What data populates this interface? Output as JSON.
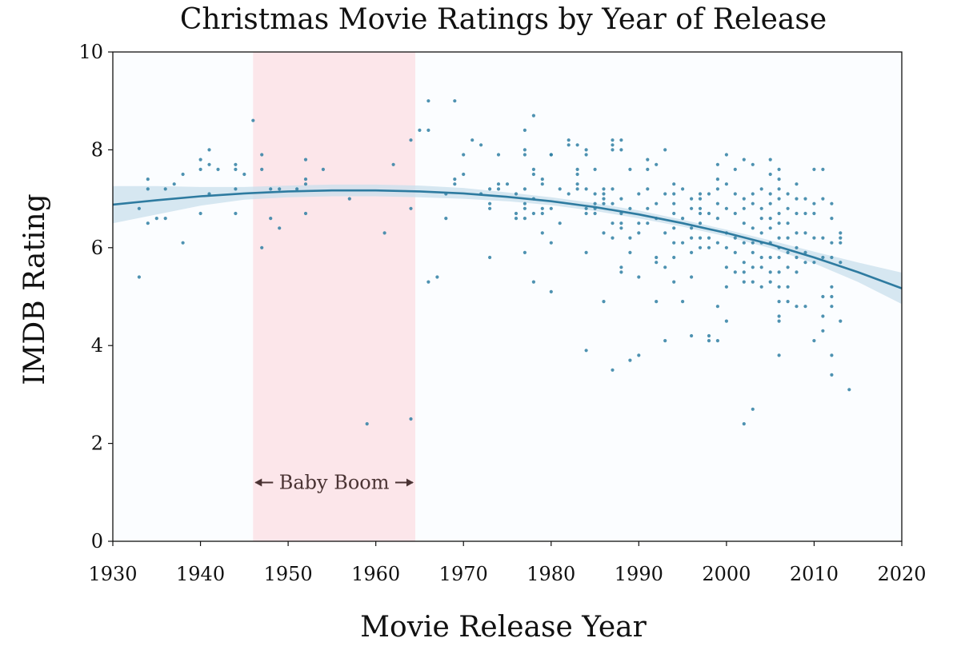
{
  "chart_data": {
    "type": "scatter",
    "title": "Christmas Movie Ratings by Year of Release",
    "xlabel": "Movie Release Year",
    "ylabel": "IMDB Rating",
    "xlim": [
      1930,
      2020
    ],
    "ylim": [
      0,
      10
    ],
    "x_ticks": [
      1930,
      1940,
      1950,
      1960,
      1970,
      1980,
      1990,
      2000,
      2010,
      2020
    ],
    "y_ticks": [
      0,
      2,
      4,
      6,
      8,
      10
    ],
    "grid": false,
    "colors": {
      "points": "#2f7fa3",
      "trend_line": "#2e7ba0",
      "confidence_band": "#c9dfec",
      "highlight_region": "#fce6ea",
      "plot_background": "#fbfdff",
      "annotation": "#4a3333"
    },
    "highlight_region": {
      "label": "Baby Boom",
      "x_start": 1946,
      "x_end": 1964.5,
      "label_y": 1.2
    },
    "trend_line": {
      "type": "smoothed fit with confidence band",
      "x": [
        1930,
        1935,
        1940,
        1945,
        1950,
        1955,
        1960,
        1965,
        1970,
        1975,
        1980,
        1985,
        1990,
        1995,
        2000,
        2005,
        2010,
        2015,
        2020
      ],
      "y": [
        6.88,
        6.97,
        7.05,
        7.11,
        7.15,
        7.17,
        7.17,
        7.15,
        7.11,
        7.04,
        6.95,
        6.83,
        6.68,
        6.5,
        6.3,
        6.07,
        5.8,
        5.5,
        5.17
      ],
      "lower": [
        6.5,
        6.68,
        6.86,
        6.98,
        7.03,
        7.05,
        7.05,
        7.03,
        7.0,
        6.95,
        6.87,
        6.75,
        6.6,
        6.43,
        6.23,
        5.99,
        5.68,
        5.3,
        4.85
      ],
      "upper": [
        7.26,
        7.26,
        7.24,
        7.24,
        7.27,
        7.29,
        7.29,
        7.27,
        7.22,
        7.13,
        7.03,
        6.91,
        6.76,
        6.57,
        6.37,
        6.15,
        5.92,
        5.7,
        5.49
      ]
    },
    "points": [
      [
        1933,
        5.4
      ],
      [
        1933,
        6.8
      ],
      [
        1934,
        7.2
      ],
      [
        1934,
        7.4
      ],
      [
        1934,
        6.5
      ],
      [
        1935,
        6.6
      ],
      [
        1936,
        6.6
      ],
      [
        1936,
        7.2
      ],
      [
        1937,
        7.3
      ],
      [
        1938,
        7.5
      ],
      [
        1938,
        6.1
      ],
      [
        1940,
        7.8
      ],
      [
        1940,
        7.6
      ],
      [
        1940,
        6.7
      ],
      [
        1941,
        8.0
      ],
      [
        1941,
        7.7
      ],
      [
        1941,
        7.1
      ],
      [
        1942,
        7.6
      ],
      [
        1944,
        7.7
      ],
      [
        1944,
        7.6
      ],
      [
        1944,
        7.2
      ],
      [
        1944,
        6.7
      ],
      [
        1945,
        7.5
      ],
      [
        1946,
        8.6
      ],
      [
        1947,
        7.9
      ],
      [
        1947,
        7.6
      ],
      [
        1947,
        6.0
      ],
      [
        1948,
        7.2
      ],
      [
        1948,
        6.6
      ],
      [
        1949,
        7.2
      ],
      [
        1949,
        6.4
      ],
      [
        1951,
        7.2
      ],
      [
        1952,
        7.8
      ],
      [
        1952,
        7.4
      ],
      [
        1952,
        7.3
      ],
      [
        1952,
        6.7
      ],
      [
        1954,
        7.6
      ],
      [
        1957,
        7.0
      ],
      [
        1959,
        2.4
      ],
      [
        1961,
        6.3
      ],
      [
        1962,
        7.7
      ],
      [
        1964,
        8.2
      ],
      [
        1964,
        6.8
      ],
      [
        1964,
        2.5
      ],
      [
        1965,
        8.4
      ],
      [
        1966,
        9.0
      ],
      [
        1966,
        8.4
      ],
      [
        1966,
        5.3
      ],
      [
        1967,
        5.4
      ],
      [
        1968,
        7.1
      ],
      [
        1968,
        6.6
      ],
      [
        1969,
        9.0
      ],
      [
        1969,
        7.4
      ],
      [
        1969,
        7.3
      ],
      [
        1970,
        7.9
      ],
      [
        1970,
        7.5
      ],
      [
        1971,
        8.2
      ],
      [
        1972,
        8.1
      ],
      [
        1972,
        7.1
      ],
      [
        1973,
        7.2
      ],
      [
        1973,
        6.9
      ],
      [
        1973,
        6.8
      ],
      [
        1973,
        5.8
      ],
      [
        1974,
        7.9
      ],
      [
        1974,
        7.3
      ],
      [
        1974,
        7.2
      ],
      [
        1975,
        7.3
      ],
      [
        1976,
        7.1
      ],
      [
        1976,
        6.7
      ],
      [
        1976,
        6.6
      ],
      [
        1977,
        8.4
      ],
      [
        1977,
        8.0
      ],
      [
        1977,
        7.9
      ],
      [
        1977,
        7.2
      ],
      [
        1977,
        6.9
      ],
      [
        1977,
        6.8
      ],
      [
        1977,
        6.6
      ],
      [
        1977,
        5.9
      ],
      [
        1978,
        8.7
      ],
      [
        1978,
        7.6
      ],
      [
        1978,
        7.5
      ],
      [
        1978,
        7.0
      ],
      [
        1978,
        6.7
      ],
      [
        1978,
        5.3
      ],
      [
        1979,
        7.4
      ],
      [
        1979,
        7.3
      ],
      [
        1979,
        6.8
      ],
      [
        1979,
        6.7
      ],
      [
        1979,
        6.3
      ],
      [
        1980,
        7.9
      ],
      [
        1980,
        7.9
      ],
      [
        1980,
        6.8
      ],
      [
        1980,
        6.1
      ],
      [
        1980,
        5.1
      ],
      [
        1981,
        7.2
      ],
      [
        1981,
        6.5
      ],
      [
        1982,
        8.2
      ],
      [
        1982,
        8.1
      ],
      [
        1982,
        7.1
      ],
      [
        1983,
        8.1
      ],
      [
        1983,
        7.6
      ],
      [
        1983,
        7.5
      ],
      [
        1983,
        7.3
      ],
      [
        1983,
        7.2
      ],
      [
        1984,
        8.0
      ],
      [
        1984,
        7.9
      ],
      [
        1984,
        7.2
      ],
      [
        1984,
        6.8
      ],
      [
        1984,
        6.7
      ],
      [
        1984,
        5.9
      ],
      [
        1984,
        3.9
      ],
      [
        1985,
        7.6
      ],
      [
        1985,
        7.1
      ],
      [
        1985,
        6.9
      ],
      [
        1985,
        6.8
      ],
      [
        1985,
        6.7
      ],
      [
        1986,
        7.2
      ],
      [
        1986,
        7.1
      ],
      [
        1986,
        7.0
      ],
      [
        1986,
        6.9
      ],
      [
        1986,
        6.3
      ],
      [
        1986,
        4.9
      ],
      [
        1987,
        8.2
      ],
      [
        1987,
        8.1
      ],
      [
        1987,
        8.0
      ],
      [
        1987,
        7.2
      ],
      [
        1987,
        6.9
      ],
      [
        1987,
        6.5
      ],
      [
        1987,
        6.2
      ],
      [
        1987,
        3.5
      ],
      [
        1988,
        8.2
      ],
      [
        1988,
        8.0
      ],
      [
        1988,
        7.0
      ],
      [
        1988,
        6.7
      ],
      [
        1988,
        6.5
      ],
      [
        1988,
        6.4
      ],
      [
        1988,
        5.6
      ],
      [
        1988,
        5.5
      ],
      [
        1989,
        7.6
      ],
      [
        1989,
        6.8
      ],
      [
        1989,
        6.2
      ],
      [
        1989,
        5.9
      ],
      [
        1989,
        3.7
      ],
      [
        1990,
        7.1
      ],
      [
        1990,
        6.5
      ],
      [
        1990,
        6.3
      ],
      [
        1990,
        5.4
      ],
      [
        1990,
        3.8
      ],
      [
        1991,
        7.8
      ],
      [
        1991,
        7.6
      ],
      [
        1991,
        7.2
      ],
      [
        1991,
        6.8
      ],
      [
        1991,
        6.5
      ],
      [
        1992,
        7.7
      ],
      [
        1992,
        6.9
      ],
      [
        1992,
        6.6
      ],
      [
        1992,
        5.8
      ],
      [
        1992,
        5.7
      ],
      [
        1992,
        4.9
      ],
      [
        1993,
        8.0
      ],
      [
        1993,
        7.1
      ],
      [
        1993,
        6.3
      ],
      [
        1993,
        5.6
      ],
      [
        1993,
        4.1
      ],
      [
        1994,
        7.3
      ],
      [
        1994,
        7.1
      ],
      [
        1994,
        6.9
      ],
      [
        1994,
        6.7
      ],
      [
        1994,
        6.4
      ],
      [
        1994,
        6.1
      ],
      [
        1994,
        5.8
      ],
      [
        1994,
        5.3
      ],
      [
        1995,
        7.2
      ],
      [
        1995,
        6.6
      ],
      [
        1995,
        6.1
      ],
      [
        1995,
        4.9
      ],
      [
        1996,
        7.0
      ],
      [
        1996,
        6.8
      ],
      [
        1996,
        6.4
      ],
      [
        1996,
        6.2
      ],
      [
        1996,
        5.9
      ],
      [
        1996,
        5.4
      ],
      [
        1996,
        4.2
      ],
      [
        1997,
        7.1
      ],
      [
        1997,
        7.0
      ],
      [
        1997,
        6.8
      ],
      [
        1997,
        6.7
      ],
      [
        1997,
        6.5
      ],
      [
        1997,
        6.2
      ],
      [
        1997,
        6.0
      ],
      [
        1998,
        7.1
      ],
      [
        1998,
        6.7
      ],
      [
        1998,
        6.2
      ],
      [
        1998,
        6.0
      ],
      [
        1998,
        4.2
      ],
      [
        1998,
        4.1
      ],
      [
        1999,
        7.7
      ],
      [
        1999,
        7.4
      ],
      [
        1999,
        7.2
      ],
      [
        1999,
        6.9
      ],
      [
        1999,
        6.6
      ],
      [
        1999,
        6.1
      ],
      [
        1999,
        4.8
      ],
      [
        1999,
        4.1
      ],
      [
        2000,
        7.9
      ],
      [
        2000,
        7.3
      ],
      [
        2000,
        6.8
      ],
      [
        2000,
        6.3
      ],
      [
        2000,
        6.0
      ],
      [
        2000,
        5.6
      ],
      [
        2000,
        5.2
      ],
      [
        2000,
        4.5
      ],
      [
        2001,
        7.6
      ],
      [
        2001,
        7.1
      ],
      [
        2001,
        6.7
      ],
      [
        2001,
        6.2
      ],
      [
        2001,
        5.9
      ],
      [
        2001,
        5.5
      ],
      [
        2002,
        7.8
      ],
      [
        2002,
        7.0
      ],
      [
        2002,
        6.8
      ],
      [
        2002,
        6.5
      ],
      [
        2002,
        6.1
      ],
      [
        2002,
        5.7
      ],
      [
        2002,
        5.5
      ],
      [
        2002,
        5.3
      ],
      [
        2002,
        2.4
      ],
      [
        2003,
        7.7
      ],
      [
        2003,
        7.1
      ],
      [
        2003,
        6.9
      ],
      [
        2003,
        6.4
      ],
      [
        2003,
        6.1
      ],
      [
        2003,
        5.9
      ],
      [
        2003,
        5.6
      ],
      [
        2003,
        5.3
      ],
      [
        2003,
        2.7
      ],
      [
        2004,
        7.2
      ],
      [
        2004,
        6.8
      ],
      [
        2004,
        6.6
      ],
      [
        2004,
        6.3
      ],
      [
        2004,
        6.1
      ],
      [
        2004,
        5.8
      ],
      [
        2004,
        5.6
      ],
      [
        2004,
        5.2
      ],
      [
        2005,
        7.8
      ],
      [
        2005,
        7.5
      ],
      [
        2005,
        7.1
      ],
      [
        2005,
        6.9
      ],
      [
        2005,
        6.6
      ],
      [
        2005,
        6.4
      ],
      [
        2005,
        6.1
      ],
      [
        2005,
        5.8
      ],
      [
        2005,
        5.5
      ],
      [
        2005,
        5.3
      ],
      [
        2006,
        7.6
      ],
      [
        2006,
        7.4
      ],
      [
        2006,
        7.2
      ],
      [
        2006,
        7.0
      ],
      [
        2006,
        6.7
      ],
      [
        2006,
        6.5
      ],
      [
        2006,
        6.2
      ],
      [
        2006,
        6.0
      ],
      [
        2006,
        5.8
      ],
      [
        2006,
        5.5
      ],
      [
        2006,
        5.2
      ],
      [
        2006,
        4.9
      ],
      [
        2006,
        4.6
      ],
      [
        2006,
        4.5
      ],
      [
        2006,
        3.8
      ],
      [
        2007,
        7.1
      ],
      [
        2007,
        6.8
      ],
      [
        2007,
        6.5
      ],
      [
        2007,
        6.2
      ],
      [
        2007,
        5.9
      ],
      [
        2007,
        5.6
      ],
      [
        2007,
        5.2
      ],
      [
        2007,
        4.9
      ],
      [
        2008,
        7.3
      ],
      [
        2008,
        7.0
      ],
      [
        2008,
        6.7
      ],
      [
        2008,
        6.3
      ],
      [
        2008,
        6.0
      ],
      [
        2008,
        5.8
      ],
      [
        2008,
        5.5
      ],
      [
        2008,
        4.8
      ],
      [
        2009,
        7.0
      ],
      [
        2009,
        6.7
      ],
      [
        2009,
        6.3
      ],
      [
        2009,
        5.9
      ],
      [
        2009,
        5.7
      ],
      [
        2009,
        4.8
      ],
      [
        2010,
        7.6
      ],
      [
        2010,
        6.9
      ],
      [
        2010,
        6.7
      ],
      [
        2010,
        6.2
      ],
      [
        2010,
        5.7
      ],
      [
        2010,
        4.1
      ],
      [
        2011,
        7.6
      ],
      [
        2011,
        7.0
      ],
      [
        2011,
        6.2
      ],
      [
        2011,
        5.8
      ],
      [
        2011,
        5.0
      ],
      [
        2011,
        4.6
      ],
      [
        2011,
        4.3
      ],
      [
        2012,
        6.9
      ],
      [
        2012,
        6.6
      ],
      [
        2012,
        6.1
      ],
      [
        2012,
        5.8
      ],
      [
        2012,
        5.2
      ],
      [
        2012,
        5.0
      ],
      [
        2012,
        4.8
      ],
      [
        2012,
        3.8
      ],
      [
        2012,
        3.4
      ],
      [
        2013,
        6.3
      ],
      [
        2013,
        6.2
      ],
      [
        2013,
        6.1
      ],
      [
        2013,
        5.7
      ],
      [
        2013,
        4.5
      ],
      [
        2014,
        3.1
      ]
    ]
  }
}
